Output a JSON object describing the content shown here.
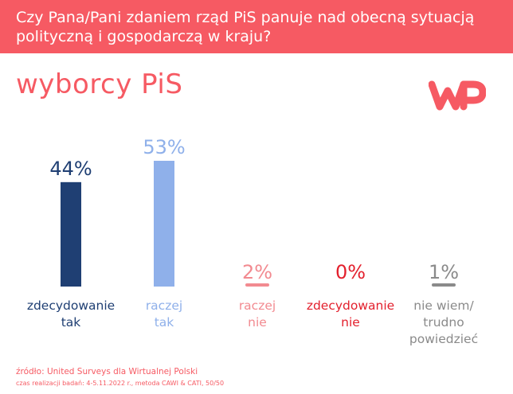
{
  "header": {
    "title": "Czy Pana/Pani zdaniem rząd PiS panuje nad obecną sytuacją polityczną i gospodarczą w kraju?"
  },
  "subtitle": "wyborcy PiS",
  "logo": {
    "icon": "wp-logo-icon",
    "color": "#f65a63"
  },
  "chart_data": {
    "type": "bar",
    "categories": [
      [
        "zdecydowanie",
        "tak"
      ],
      [
        "raczej",
        "tak"
      ],
      [
        "raczej",
        "nie"
      ],
      [
        "zdecydowanie",
        "nie"
      ],
      [
        "nie wiem/",
        "trudno",
        "powiedzieć"
      ]
    ],
    "values": [
      44,
      53,
      2,
      0,
      1
    ],
    "value_labels": [
      "44%",
      "53%",
      "2%",
      "0%",
      "1%"
    ],
    "colors": [
      "#1f3f73",
      "#8fb0ea",
      "#f28a90",
      "#e3202d",
      "#8a8a8a"
    ],
    "unit": "%",
    "ylim": [
      0,
      53
    ],
    "grid": false,
    "legend": "none"
  },
  "footer": {
    "source": "źródło: United Surveys dla Wirtualnej Polski",
    "meta": "czas realizacji badań: 4-5.11.2022 r., metoda CAWI & CATI, 50/50"
  }
}
